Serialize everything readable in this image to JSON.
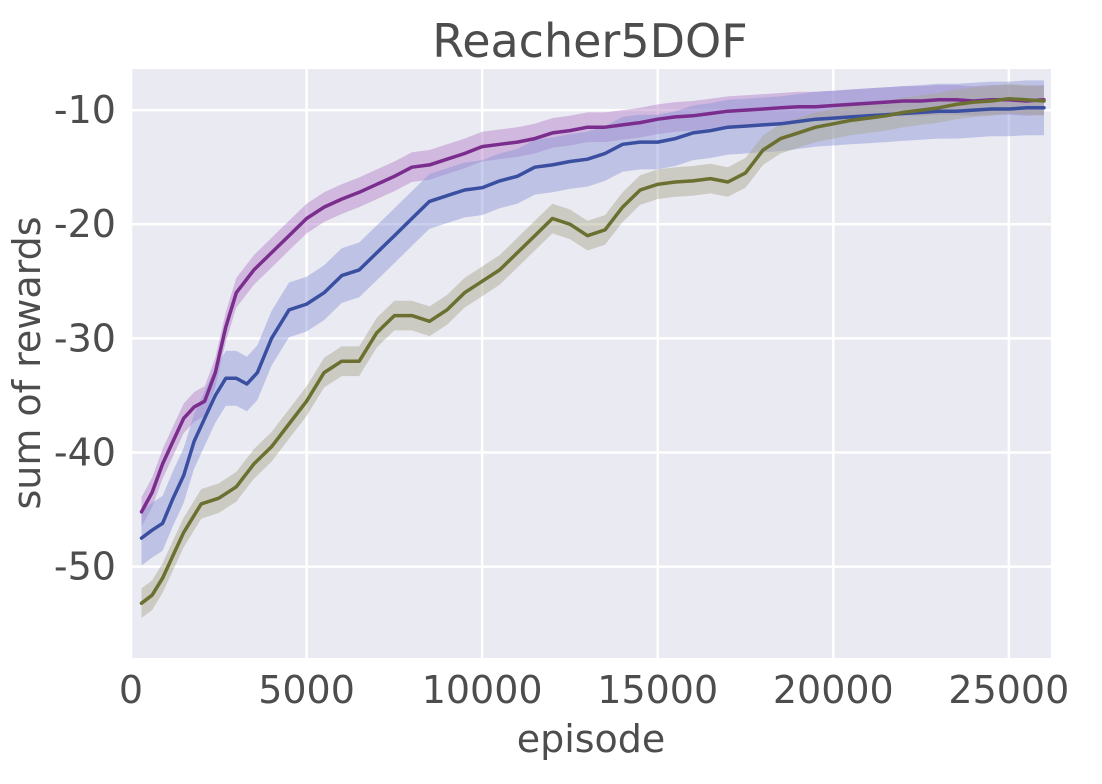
{
  "chart_data": {
    "type": "line",
    "title": "Reacher5DOF",
    "xlabel": "episode",
    "ylabel": "sum of rewards",
    "xlim": [
      0,
      26200
    ],
    "ylim": [
      -58,
      -6.4
    ],
    "xticks": [
      0,
      5000,
      10000,
      15000,
      20000,
      25000
    ],
    "xtick_labels": [
      "0",
      "5000",
      "10000",
      "15000",
      "20000",
      "25000"
    ],
    "yticks": [
      -10,
      -20,
      -30,
      -40,
      -50
    ],
    "ytick_labels": [
      "-10",
      "-20",
      "-30",
      "-40",
      "-50"
    ],
    "grid": true,
    "legend": "none",
    "colors": {
      "background": "#eaeaf2",
      "grid": "#ffffff"
    },
    "series": [
      {
        "color": "#7b2d8e",
        "band_color": "#b27cc6",
        "band": 1.3,
        "x": [
          300,
          600,
          900,
          1200,
          1500,
          1800,
          2100,
          2400,
          2700,
          3000,
          3500,
          4000,
          4500,
          5000,
          5500,
          6000,
          6500,
          7000,
          7500,
          8000,
          8500,
          9000,
          9500,
          10000,
          10500,
          11000,
          11500,
          12000,
          12500,
          13000,
          13500,
          14000,
          14500,
          15000,
          15500,
          16000,
          16500,
          17000,
          17500,
          18000,
          18500,
          19000,
          19500,
          20000,
          20500,
          21000,
          21500,
          22000,
          22500,
          23000,
          23500,
          24000,
          24500,
          25000,
          25500,
          26000
        ],
        "values": [
          -45.2,
          -43.5,
          -41,
          -39,
          -37,
          -36,
          -35.5,
          -33,
          -29,
          -26,
          -24,
          -22.5,
          -21,
          -19.5,
          -18.5,
          -17.8,
          -17.2,
          -16.5,
          -15.8,
          -15,
          -14.8,
          -14.3,
          -13.8,
          -13.2,
          -13,
          -12.8,
          -12.5,
          -12,
          -11.8,
          -11.5,
          -11.5,
          -11.3,
          -11.1,
          -10.8,
          -10.6,
          -10.5,
          -10.3,
          -10.1,
          -10,
          -9.9,
          -9.8,
          -9.7,
          -9.7,
          -9.6,
          -9.5,
          -9.4,
          -9.3,
          -9.2,
          -9.2,
          -9.1,
          -9.1,
          -9.2,
          -9.1,
          -9.1,
          -9.2,
          -9.1
        ]
      },
      {
        "color": "#3a4fa0",
        "band_color": "#8a94d8",
        "band": 2.4,
        "x": [
          300,
          600,
          900,
          1200,
          1500,
          1800,
          2100,
          2400,
          2700,
          3000,
          3300,
          3600,
          4000,
          4500,
          5000,
          5500,
          6000,
          6500,
          7000,
          7500,
          8000,
          8500,
          9000,
          9500,
          10000,
          10500,
          11000,
          11500,
          12000,
          12500,
          13000,
          13500,
          14000,
          14500,
          15000,
          15500,
          16000,
          16500,
          17000,
          17500,
          18000,
          18500,
          19000,
          19500,
          20000,
          20500,
          21000,
          21500,
          22000,
          22500,
          23000,
          23500,
          24000,
          24500,
          25000,
          25500,
          26000
        ],
        "values": [
          -47.5,
          -46.8,
          -46.2,
          -44,
          -42,
          -39,
          -37,
          -35,
          -33.5,
          -33.5,
          -34,
          -33,
          -30,
          -27.5,
          -27,
          -26,
          -24.5,
          -24,
          -22.5,
          -21,
          -19.5,
          -18,
          -17.5,
          -17,
          -16.8,
          -16.2,
          -15.8,
          -15,
          -14.8,
          -14.5,
          -14.3,
          -13.8,
          -13,
          -12.8,
          -12.8,
          -12.5,
          -12,
          -11.8,
          -11.5,
          -11.4,
          -11.3,
          -11.2,
          -11,
          -10.8,
          -10.7,
          -10.6,
          -10.5,
          -10.4,
          -10.3,
          -10.2,
          -10.1,
          -10.1,
          -10,
          -9.9,
          -9.9,
          -9.8,
          -9.8
        ]
      },
      {
        "color": "#6b7030",
        "band_color": "#a6a68a",
        "band": 1.3,
        "x": [
          300,
          600,
          900,
          1200,
          1500,
          2000,
          2500,
          3000,
          3500,
          4000,
          4500,
          5000,
          5500,
          6000,
          6500,
          7000,
          7500,
          8000,
          8500,
          9000,
          9500,
          10000,
          10500,
          11000,
          11500,
          12000,
          12500,
          13000,
          13500,
          14000,
          14500,
          15000,
          15500,
          16000,
          16500,
          17000,
          17500,
          18000,
          18500,
          19000,
          19500,
          20000,
          20500,
          21000,
          21500,
          22000,
          22500,
          23000,
          23500,
          24000,
          24500,
          25000,
          25500,
          26000
        ],
        "values": [
          -53.2,
          -52.5,
          -51,
          -49,
          -47,
          -44.5,
          -44,
          -43,
          -41,
          -39.5,
          -37.5,
          -35.5,
          -33,
          -32,
          -32,
          -29.5,
          -28,
          -28,
          -28.5,
          -27.5,
          -26,
          -25,
          -24,
          -22.5,
          -21,
          -19.5,
          -20,
          -21,
          -20.5,
          -18.5,
          -17,
          -16.5,
          -16.3,
          -16.2,
          -16,
          -16.3,
          -15.5,
          -13.5,
          -12.5,
          -12,
          -11.5,
          -11.2,
          -10.9,
          -10.7,
          -10.5,
          -10.2,
          -10,
          -9.8,
          -9.5,
          -9.3,
          -9.2,
          -9,
          -9.1,
          -9.2
        ]
      }
    ]
  }
}
